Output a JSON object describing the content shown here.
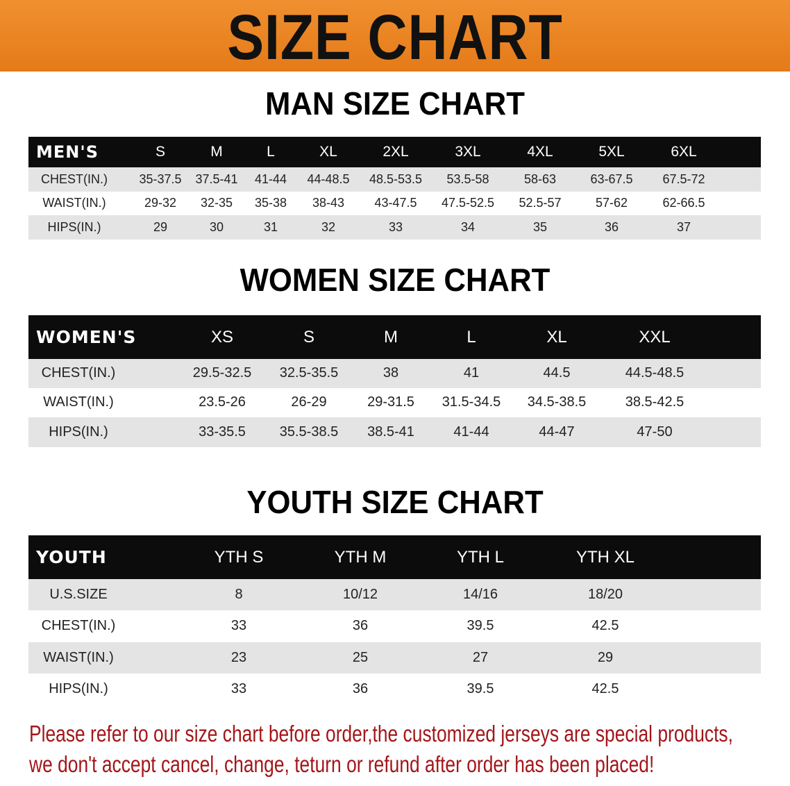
{
  "banner": {
    "title": "SIZE CHART",
    "color": "#e8801e"
  },
  "men": {
    "title": "MAN SIZE CHART",
    "header": [
      "MEN'S",
      "S",
      "M",
      "L",
      "XL",
      "2XL",
      "3XL",
      "4XL",
      "5XL",
      "6XL"
    ],
    "rows": [
      [
        "CHEST(IN.)",
        "35-37.5",
        "37.5-41",
        "41-44",
        "44-48.5",
        "48.5-53.5",
        "53.5-58",
        "58-63",
        "63-67.5",
        "67.5-72"
      ],
      [
        "WAIST(IN.)",
        "29-32",
        "32-35",
        "35-38",
        "38-43",
        "43-47.5",
        "47.5-52.5",
        "52.5-57",
        "57-62",
        "62-66.5"
      ],
      [
        "HIPS(IN.)",
        "29",
        "30",
        "31",
        "32",
        "33",
        "34",
        "35",
        "36",
        "37"
      ]
    ]
  },
  "women": {
    "title": "WOMEN SIZE CHART",
    "header": [
      "WOMEN'S",
      "XS",
      "S",
      "M",
      "L",
      "XL",
      "XXL"
    ],
    "rows": [
      [
        "CHEST(IN.)",
        "29.5-32.5",
        "32.5-35.5",
        "38",
        "41",
        "44.5",
        "44.5-48.5"
      ],
      [
        "WAIST(IN.)",
        "23.5-26",
        "26-29",
        "29-31.5",
        "31.5-34.5",
        "34.5-38.5",
        "38.5-42.5"
      ],
      [
        "HIPS(IN.)",
        "33-35.5",
        "35.5-38.5",
        "38.5-41",
        "41-44",
        "44-47",
        "47-50"
      ]
    ]
  },
  "youth": {
    "title": "YOUTH SIZE CHART",
    "header": [
      "YOUTH",
      "YTH S",
      "YTH M",
      "YTH L",
      "YTH XL"
    ],
    "rows": [
      [
        "U.S.SIZE",
        "8",
        "10/12",
        "14/16",
        "18/20"
      ],
      [
        "CHEST(IN.)",
        "33",
        "36",
        "39.5",
        "42.5"
      ],
      [
        "WAIST(IN.)",
        "23",
        "25",
        "27",
        "29"
      ],
      [
        "HIPS(IN.)",
        "33",
        "36",
        "39.5",
        "42.5"
      ]
    ]
  },
  "footer": {
    "line1": "Please refer to our size chart before order,the customized jerseys are special products,",
    "line2": "we don't accept cancel, change, teturn or refund after order has been placed!",
    "color": "#a3161a"
  }
}
